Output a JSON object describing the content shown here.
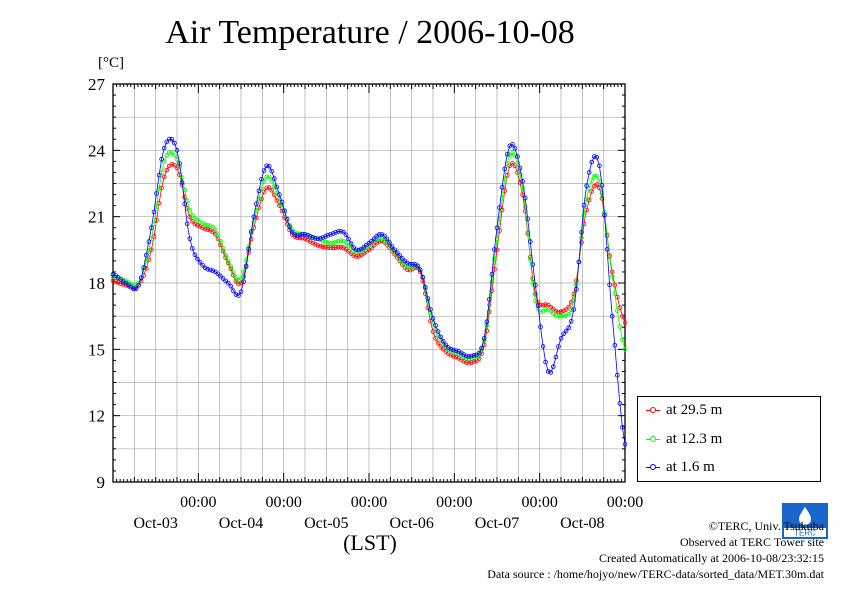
{
  "chart_data": {
    "type": "line",
    "title": "Air Temperature / 2006-10-08",
    "ylabel": "[°C]",
    "xlabel": "(LST)",
    "ylim": [
      9,
      27
    ],
    "yticks": [
      9,
      12,
      15,
      18,
      21,
      24,
      27
    ],
    "xlim_days": [
      0,
      6
    ],
    "xtick_labels_time": [
      "00:00",
      "00:00",
      "00:00",
      "00:00",
      "00:00",
      "00:00"
    ],
    "xtick_labels_date": [
      "Oct-03",
      "Oct-04",
      "Oct-05",
      "Oct-06",
      "Oct-07",
      "Oct-08"
    ],
    "legend_position": "right-bottom outside",
    "series": [
      {
        "name": "at 29.5 m",
        "color": "#ff0000",
        "x": [
          0.0,
          0.15,
          0.3,
          0.45,
          0.6,
          0.75,
          0.9,
          1.05,
          1.2,
          1.35,
          1.5,
          1.65,
          1.8,
          1.95,
          2.1,
          2.25,
          2.4,
          2.55,
          2.7,
          2.85,
          3.0,
          3.15,
          3.3,
          3.45,
          3.6,
          3.75,
          3.9,
          4.05,
          4.2,
          4.35,
          4.5,
          4.65,
          4.8,
          4.95,
          5.1,
          5.25,
          5.4,
          5.55,
          5.7,
          5.85,
          6.0
        ],
        "y": [
          18.1,
          17.9,
          17.9,
          19.5,
          22.8,
          23.2,
          21.0,
          20.5,
          20.2,
          18.9,
          18.0,
          20.5,
          22.3,
          21.5,
          20.2,
          20.0,
          19.7,
          19.6,
          19.6,
          19.2,
          19.5,
          19.9,
          19.3,
          18.6,
          18.5,
          15.8,
          14.9,
          14.6,
          14.4,
          15.2,
          19.5,
          23.3,
          22.0,
          17.5,
          17.0,
          16.7,
          17.5,
          21.3,
          22.3,
          18.5,
          16.2
        ]
      },
      {
        "name": "at 12.3 m",
        "color": "#00ff00",
        "x": [
          0.0,
          0.15,
          0.3,
          0.45,
          0.6,
          0.75,
          0.9,
          1.05,
          1.2,
          1.35,
          1.5,
          1.65,
          1.8,
          1.95,
          2.1,
          2.25,
          2.4,
          2.55,
          2.7,
          2.85,
          3.0,
          3.15,
          3.3,
          3.45,
          3.6,
          3.75,
          3.9,
          4.05,
          4.2,
          4.35,
          4.5,
          4.65,
          4.8,
          4.95,
          5.1,
          5.25,
          5.4,
          5.55,
          5.7,
          5.85,
          6.0
        ],
        "y": [
          18.3,
          18.1,
          18.0,
          20.0,
          23.5,
          23.6,
          21.3,
          20.7,
          20.4,
          19.0,
          18.2,
          20.8,
          22.8,
          21.8,
          20.4,
          20.2,
          20.0,
          19.8,
          19.9,
          19.4,
          19.7,
          20.0,
          19.4,
          18.7,
          18.6,
          16.2,
          15.1,
          14.8,
          14.6,
          15.4,
          20.0,
          23.8,
          22.3,
          17.2,
          16.8,
          16.5,
          17.2,
          21.8,
          22.6,
          18.3,
          15.0
        ]
      },
      {
        "name": "at 1.6 m",
        "color": "#0000ff",
        "x": [
          0.0,
          0.15,
          0.3,
          0.45,
          0.6,
          0.75,
          0.9,
          1.05,
          1.2,
          1.35,
          1.5,
          1.65,
          1.8,
          1.95,
          2.1,
          2.25,
          2.4,
          2.55,
          2.7,
          2.85,
          3.0,
          3.15,
          3.3,
          3.45,
          3.6,
          3.75,
          3.9,
          4.05,
          4.2,
          4.35,
          4.5,
          4.65,
          4.8,
          4.95,
          5.1,
          5.25,
          5.4,
          5.55,
          5.7,
          5.85,
          6.0
        ],
        "y": [
          18.4,
          18.0,
          17.9,
          20.5,
          24.1,
          24.0,
          20.0,
          18.8,
          18.5,
          18.0,
          17.6,
          21.0,
          23.3,
          22.0,
          20.3,
          20.2,
          20.0,
          20.2,
          20.3,
          19.5,
          19.8,
          20.2,
          19.5,
          18.9,
          18.6,
          16.4,
          15.2,
          14.9,
          14.7,
          15.5,
          20.5,
          24.2,
          22.6,
          17.9,
          14.0,
          15.5,
          16.8,
          22.4,
          23.3,
          16.5,
          10.7
        ]
      }
    ]
  },
  "footer": {
    "credit": "©TERC, Univ. Tsukuba",
    "site": "Observed at TERC Tower site",
    "created": "Created Automatically at 2006-10-08/23:32:15",
    "source": "Data source : /home/hojyo/new/TERC-data/sorted_data/MET.30m.dat"
  },
  "logo_text": "TERC"
}
